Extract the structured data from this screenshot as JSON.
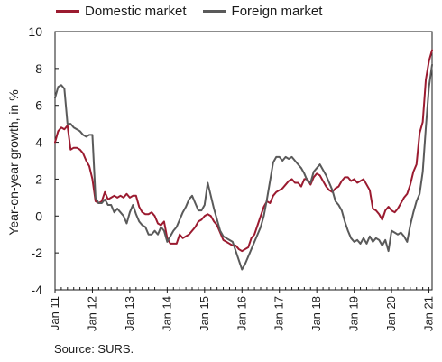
{
  "chart_data": {
    "type": "line",
    "title": "",
    "xlabel": "",
    "ylabel": "Year-on-year growth, in %",
    "ylim": [
      -4,
      10
    ],
    "yticks": [
      -4,
      -2,
      0,
      2,
      4,
      6,
      8,
      10
    ],
    "xticks": [
      "Jan 11",
      "Jan 12",
      "Jan 13",
      "Jan 14",
      "Jan 15",
      "Jan 16",
      "Jan 17",
      "Jan 18",
      "Jan 19",
      "Jan 20",
      "Jan 21"
    ],
    "x_start": "2011-01",
    "frequency": "monthly",
    "grid": false,
    "legend_position": "top",
    "series": [
      {
        "name": "Domestic market",
        "color": "#9b1b30",
        "values": [
          4.0,
          4.6,
          4.8,
          4.7,
          4.9,
          3.6,
          3.7,
          3.7,
          3.6,
          3.4,
          3.0,
          2.7,
          2.0,
          0.8,
          0.7,
          0.8,
          1.3,
          0.9,
          1.0,
          1.1,
          1.0,
          1.1,
          1.0,
          1.2,
          1.0,
          1.1,
          1.1,
          0.5,
          0.2,
          0.1,
          0.1,
          0.2,
          0.0,
          -0.4,
          -0.5,
          -0.3,
          -1.2,
          -1.5,
          -1.5,
          -1.5,
          -1.0,
          -1.2,
          -1.1,
          -1.0,
          -0.8,
          -0.6,
          -0.3,
          -0.2,
          0.0,
          0.1,
          0.0,
          -0.3,
          -0.5,
          -0.9,
          -1.3,
          -1.4,
          -1.5,
          -1.6,
          -1.6,
          -1.8,
          -1.9,
          -1.8,
          -1.7,
          -1.2,
          -1.0,
          -0.5,
          0.0,
          0.5,
          0.8,
          0.7,
          1.1,
          1.3,
          1.4,
          1.5,
          1.7,
          1.9,
          2.0,
          1.8,
          1.8,
          1.6,
          2.0,
          2.0,
          1.7,
          2.1,
          2.3,
          2.2,
          1.9,
          1.6,
          1.4,
          1.3,
          1.5,
          1.6,
          1.9,
          2.1,
          2.1,
          1.9,
          2.0,
          1.8,
          1.9,
          2.0,
          1.7,
          1.4,
          0.4,
          0.3,
          0.1,
          -0.2,
          0.3,
          0.5,
          0.3,
          0.2,
          0.4,
          0.7,
          1.0,
          1.2,
          1.7,
          2.4,
          2.8,
          4.5,
          5.1,
          7.4,
          8.4,
          9.0
        ]
      },
      {
        "name": "Foreign market",
        "color": "#5a5a5a",
        "values": [
          6.4,
          7.0,
          7.1,
          6.9,
          5.0,
          5.0,
          4.8,
          4.7,
          4.6,
          4.4,
          4.3,
          4.4,
          4.4,
          1.0,
          0.7,
          0.7,
          0.9,
          0.6,
          0.6,
          0.2,
          0.4,
          0.2,
          0.0,
          -0.4,
          0.2,
          0.6,
          0.1,
          -0.3,
          -0.5,
          -0.6,
          -1.0,
          -1.0,
          -0.8,
          -1.0,
          -0.6,
          -0.8,
          -1.4,
          -1.1,
          -0.8,
          -0.6,
          -0.2,
          0.2,
          0.5,
          0.9,
          1.1,
          0.7,
          0.3,
          0.3,
          0.6,
          1.8,
          1.1,
          0.4,
          -0.2,
          -0.8,
          -1.1,
          -1.2,
          -1.3,
          -1.4,
          -1.9,
          -2.4,
          -2.9,
          -2.6,
          -2.2,
          -1.8,
          -1.4,
          -1.0,
          -0.6,
          0.0,
          0.9,
          1.9,
          2.9,
          3.2,
          3.2,
          3.0,
          3.2,
          3.1,
          3.2,
          3.0,
          2.8,
          2.6,
          2.3,
          1.9,
          1.8,
          2.4,
          2.6,
          2.8,
          2.5,
          2.2,
          1.8,
          1.4,
          0.8,
          0.6,
          0.3,
          -0.3,
          -0.8,
          -1.2,
          -1.4,
          -1.3,
          -1.5,
          -1.2,
          -1.5,
          -1.1,
          -1.4,
          -1.2,
          -1.3,
          -1.6,
          -1.3,
          -1.9,
          -0.8,
          -0.9,
          -1.0,
          -0.9,
          -1.1,
          -1.4,
          -0.5,
          0.2,
          0.8,
          1.2,
          2.4,
          4.8,
          7.0,
          8.2
        ]
      }
    ]
  },
  "source": "Source: SURS."
}
